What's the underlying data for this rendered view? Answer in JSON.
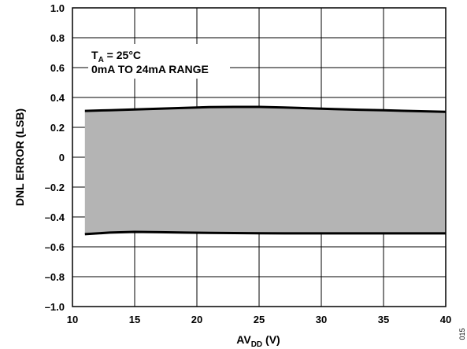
{
  "chart_data": {
    "type": "area",
    "title": "",
    "xlabel": {
      "main": "AV",
      "sub": "DD",
      "unit": " (V)"
    },
    "ylabel": "DNL ERROR (LSB)",
    "xlim": [
      10,
      40
    ],
    "ylim": [
      -1.0,
      1.0
    ],
    "x_ticks": [
      10,
      15,
      20,
      25,
      30,
      35,
      40
    ],
    "x_tick_labels": [
      "10",
      "15",
      "20",
      "25",
      "30",
      "35",
      "40"
    ],
    "y_ticks": [
      1.0,
      0.8,
      0.6,
      0.4,
      0.2,
      0,
      -0.2,
      -0.4,
      -0.6,
      -0.8,
      -1.0
    ],
    "y_tick_labels": [
      "1.0",
      "0.8",
      "0.6",
      "0.4",
      "0.2",
      "0",
      "–0.2",
      "–0.4",
      "–0.6",
      "–0.8",
      "–1.0"
    ],
    "grid": true,
    "fill_color": "#b4b4b4",
    "line_color": "#000000",
    "series": [
      {
        "x": [
          11,
          13,
          15,
          17,
          19,
          21,
          23,
          25,
          27,
          29,
          31,
          33,
          35,
          37,
          39,
          40
        ],
        "values": [
          0.31,
          0.315,
          0.32,
          0.325,
          0.33,
          0.335,
          0.337,
          0.337,
          0.333,
          0.328,
          0.322,
          0.318,
          0.314,
          0.31,
          0.306,
          0.304
        ]
      },
      {
        "x": [
          11,
          13,
          15,
          17,
          19,
          21,
          23,
          25,
          27,
          29,
          31,
          33,
          35,
          37,
          39,
          40
        ],
        "values": [
          -0.515,
          -0.505,
          -0.5,
          -0.502,
          -0.505,
          -0.507,
          -0.508,
          -0.509,
          -0.51,
          -0.51,
          -0.51,
          -0.51,
          -0.51,
          -0.51,
          -0.51,
          -0.51
        ]
      }
    ],
    "annotations": {
      "ta_main": "T",
      "ta_sub": "A",
      "ta_rest": " = 25°C",
      "range": "0mA TO 24mA RANGE"
    }
  },
  "figure_id": "015"
}
